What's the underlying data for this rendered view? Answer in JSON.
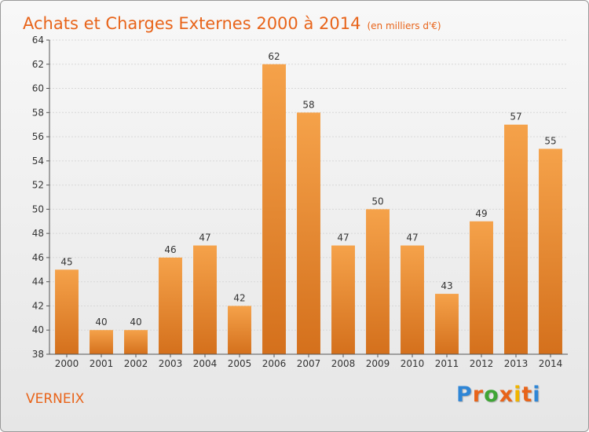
{
  "header": {
    "title": "Achats et Charges Externes 2000 à 2014",
    "unit": "(en milliers d'€)"
  },
  "commune": "VERNEIX",
  "logo": {
    "letters": [
      "P",
      "r",
      "o",
      "x",
      "i",
      "t",
      "i"
    ],
    "colors": [
      "#2f86d6",
      "#e8641a",
      "#3fa535",
      "#e8641a",
      "#f0b400",
      "#e8641a",
      "#2f86d6"
    ]
  },
  "chart_data": {
    "type": "bar",
    "title": "Achats et Charges Externes 2000 à 2014",
    "subtitle": "(en milliers d'€)",
    "categories": [
      "2000",
      "2001",
      "2002",
      "2003",
      "2004",
      "2005",
      "2006",
      "2007",
      "2008",
      "2009",
      "2010",
      "2011",
      "2012",
      "2013",
      "2014"
    ],
    "values": [
      45,
      40,
      40,
      46,
      47,
      42,
      62,
      58,
      47,
      50,
      47,
      43,
      49,
      57,
      55
    ],
    "value_labels": [
      "45",
      "40",
      "40",
      "46",
      "47",
      "42",
      "62",
      "58",
      "47",
      "50",
      "47",
      "43",
      "49",
      "57",
      "55"
    ],
    "ylim": [
      38,
      64
    ],
    "yticks": [
      38,
      40,
      42,
      44,
      46,
      48,
      50,
      52,
      54,
      56,
      58,
      60,
      62,
      64
    ],
    "ytick_labels": [
      "38",
      "40",
      "42",
      "44",
      "46",
      "48",
      "50",
      "52",
      "54",
      "56",
      "58",
      "60",
      "62",
      "64"
    ],
    "grid": true,
    "bar_color": "#f08a2a",
    "bar_color_dark": "#d7701a"
  }
}
